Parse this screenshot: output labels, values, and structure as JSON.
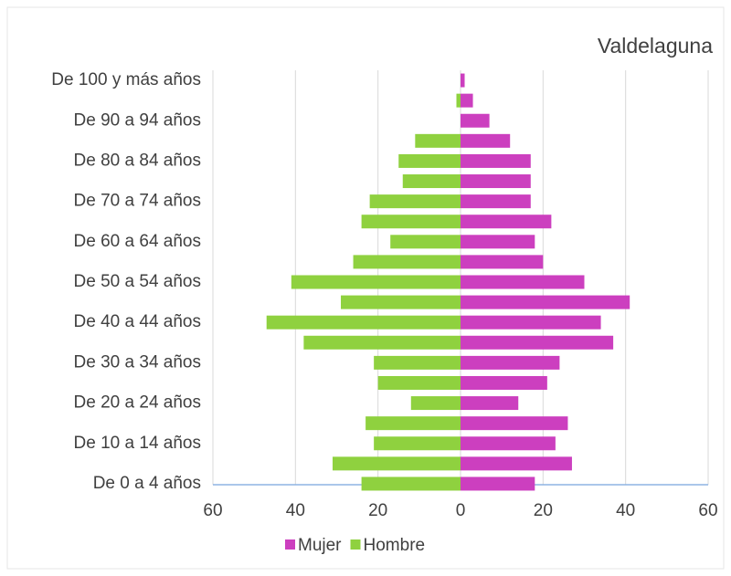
{
  "chart_data": {
    "type": "bar",
    "orientation": "horizontal",
    "barmode": "overlay",
    "title": "Valdelaguna",
    "categories": [
      "De 100 y más años",
      null,
      "De 90 a 94 años",
      null,
      "De 80 a 84 años",
      null,
      "De 70 a 74 años",
      null,
      "De 60 a 64 años",
      null,
      "De 50 a 54 años",
      null,
      "De 40 a 44 años",
      null,
      "De 30 a 34 años",
      null,
      "De 20 a 24 años",
      null,
      "De 10 a 14 años",
      null,
      "De 0 a 4 años"
    ],
    "series": [
      {
        "name": "Mujer",
        "color": "#cc3fbf",
        "values": [
          1,
          3,
          7,
          12,
          17,
          17,
          17,
          22,
          18,
          20,
          30,
          41,
          34,
          37,
          24,
          21,
          14,
          26,
          23,
          27,
          18
        ]
      },
      {
        "name": "Hombre",
        "color": "#8fd13f",
        "values": [
          0,
          -1,
          0,
          -11,
          -15,
          -14,
          -22,
          -24,
          -17,
          -26,
          -41,
          -29,
          -47,
          -38,
          -21,
          -20,
          -12,
          -23,
          -21,
          -31,
          -24
        ]
      }
    ],
    "xlim": [
      -60,
      60
    ],
    "xticks": [
      {
        "value": -60,
        "label": "60"
      },
      {
        "value": -40,
        "label": "40"
      },
      {
        "value": -20,
        "label": "20"
      },
      0,
      20,
      40,
      60
    ],
    "grid": true,
    "legend": "bottom"
  }
}
